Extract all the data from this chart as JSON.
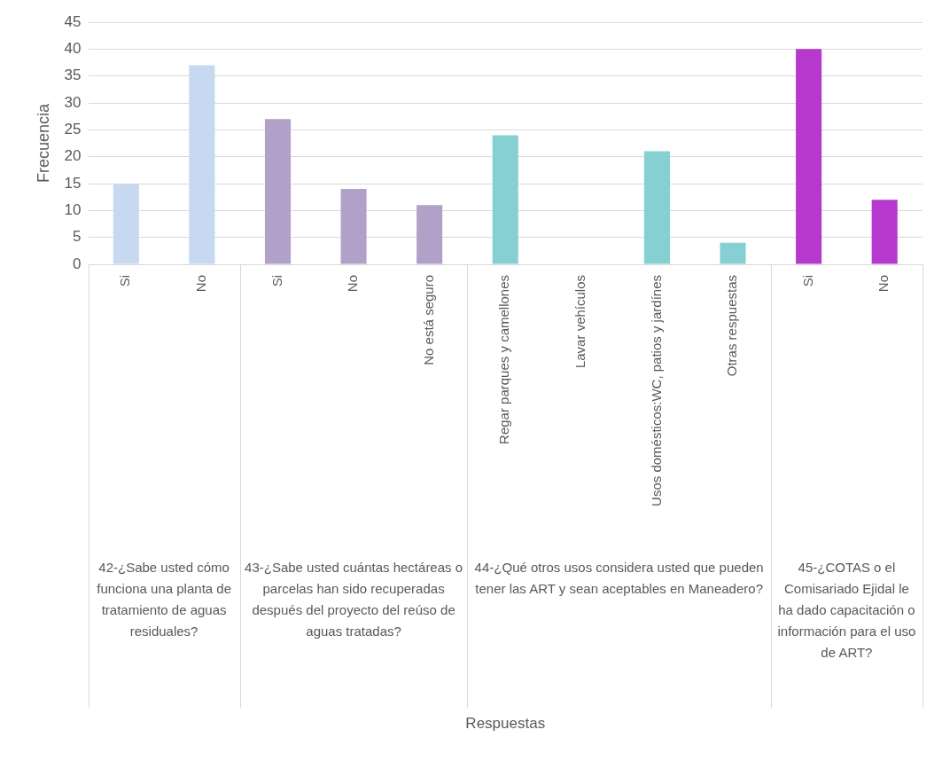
{
  "chart_data": {
    "type": "bar",
    "ylabel": "Frecuencia",
    "categories": [
      "Si",
      "No",
      "Si",
      "No",
      "No está seguro",
      "Regar parques y camellones",
      "Lavar vehículos",
      "Usos domésticos:WC, patios y jardínes",
      "Otras respuestas",
      "Si",
      "No"
    ],
    "series": [
      {
        "color": "#c6d9f1",
        "values": [
          15,
          37,
          null,
          null,
          null,
          null,
          null,
          null,
          null,
          null,
          null
        ]
      },
      {
        "color": "#b1a0c7",
        "values": [
          null,
          null,
          27,
          14,
          11,
          null,
          null,
          null,
          null,
          null,
          null
        ]
      },
      {
        "color": "#86cfd2",
        "values": [
          null,
          null,
          null,
          null,
          null,
          24,
          0,
          21,
          4,
          null,
          null
        ]
      },
      {
        "color": "#b738cc",
        "values": [
          null,
          null,
          null,
          null,
          null,
          null,
          null,
          null,
          null,
          40,
          12
        ]
      }
    ],
    "annotations": [
      "42-¿Sabe usted cómo funciona una planta de tratamiento de aguas residuales?",
      "43-¿Sabe usted cuántas hectáreas o parcelas han sido recuperadas después del proyecto del reúso de aguas tratadas?",
      "44-¿Qué otros usos considera usted que pueden tener las ART y sean aceptables en Maneadero?",
      "45-¿COTAS o el Comisariado Ejidal le ha dado capacitación o información para el uso de ART?",
      "Respuestas"
    ],
    "ylim": [
      0,
      45
    ],
    "yticks": [
      0,
      5,
      10,
      15,
      20,
      25,
      30,
      35,
      40,
      45
    ],
    "grid": "y",
    "legend": false
  }
}
